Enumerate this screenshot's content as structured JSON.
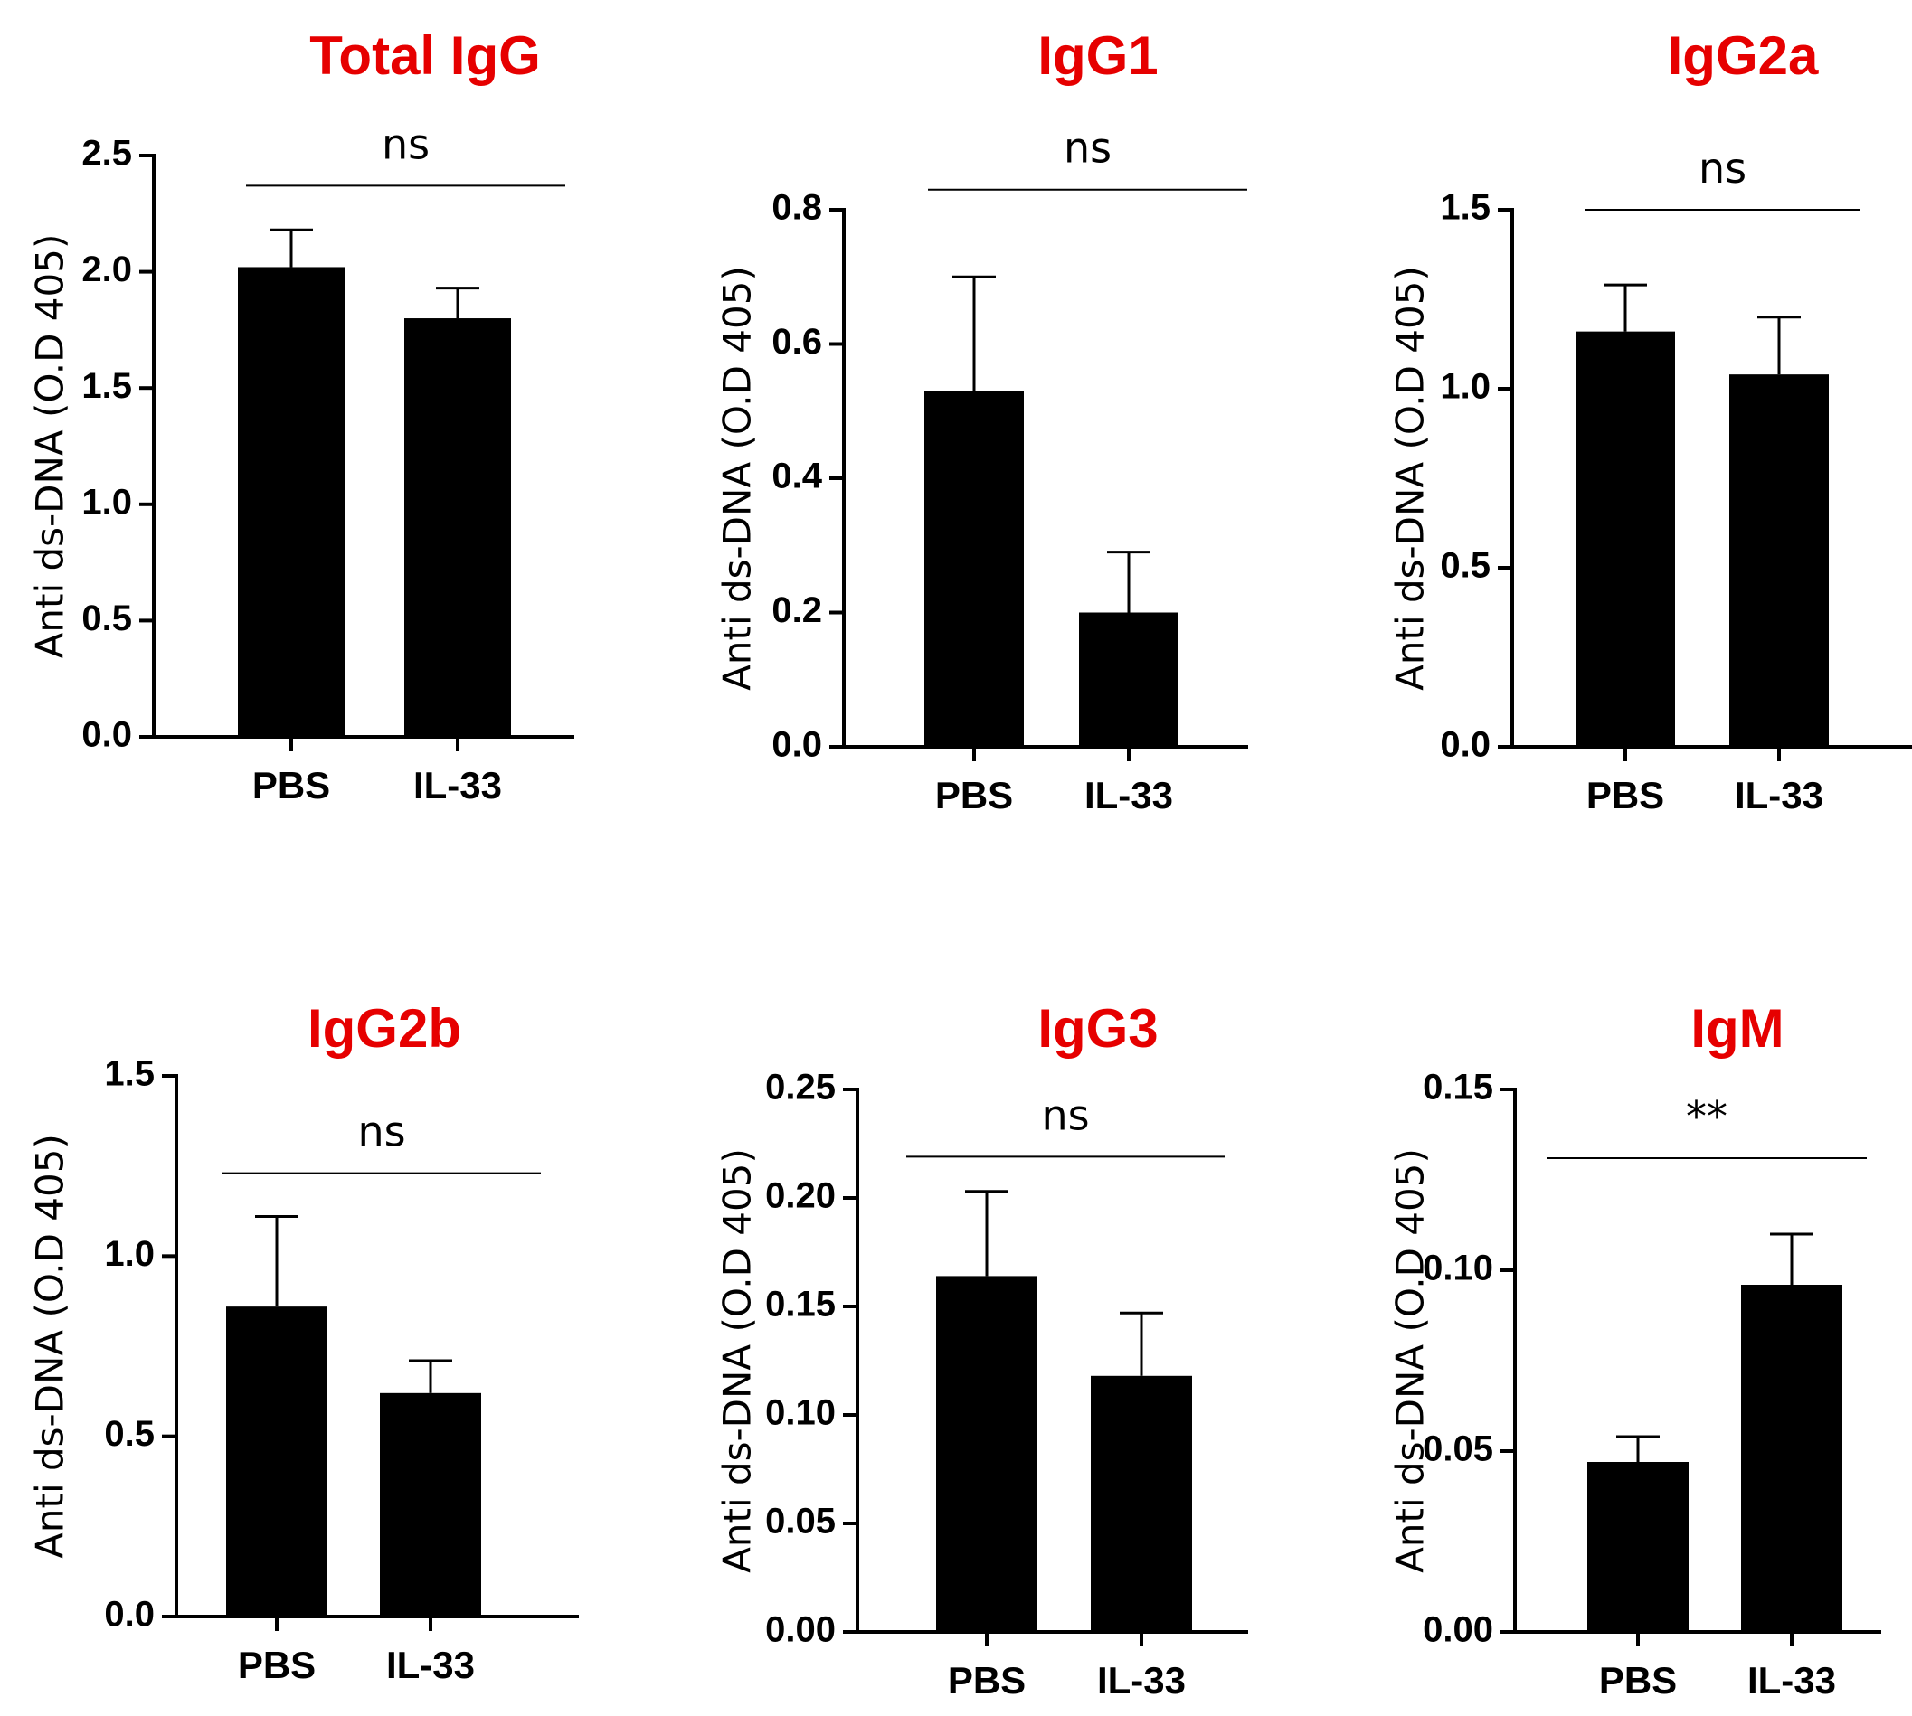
{
  "figure": {
    "title_color": "#e60000",
    "bar_color": "#000000",
    "axis_color": "#000000"
  },
  "chart_data": [
    {
      "type": "bar",
      "title": "Total IgG",
      "ylabel": "Anti ds-DNA (O.D 405)",
      "categories": [
        "PBS",
        "IL-33"
      ],
      "values": [
        2.02,
        1.8
      ],
      "errors": [
        0.16,
        0.13
      ],
      "ylim": [
        0,
        2.5
      ],
      "yticks": [
        0.0,
        0.5,
        1.0,
        1.5,
        2.0,
        2.5
      ],
      "ytick_labels": [
        "0.0",
        "0.5",
        "1.0",
        "1.5",
        "2.0",
        "2.5"
      ],
      "significance": "ns",
      "significance_level": 2.37
    },
    {
      "type": "bar",
      "title": "IgG1",
      "ylabel": "Anti ds-DNA (O.D 405)",
      "categories": [
        "PBS",
        "IL-33"
      ],
      "values": [
        0.53,
        0.2
      ],
      "errors": [
        0.17,
        0.09
      ],
      "ylim": [
        0,
        0.8
      ],
      "yticks": [
        0.0,
        0.2,
        0.4,
        0.6,
        0.8
      ],
      "ytick_labels": [
        "0.0",
        "0.2",
        "0.4",
        "0.6",
        "0.8"
      ],
      "significance": "ns",
      "significance_level": 0.83
    },
    {
      "type": "bar",
      "title": "IgG2a",
      "ylabel": "Anti ds-DNA (O.D 405)",
      "categories": [
        "PBS",
        "IL-33"
      ],
      "values": [
        1.16,
        1.04
      ],
      "errors": [
        0.13,
        0.16
      ],
      "ylim": [
        0,
        1.5
      ],
      "yticks": [
        0.0,
        0.5,
        1.0,
        1.5
      ],
      "ytick_labels": [
        "0.0",
        "0.5",
        "1.0",
        "1.5"
      ],
      "significance": "ns",
      "significance_level": 1.5
    },
    {
      "type": "bar",
      "title": "IgG2b",
      "ylabel": "Anti ds-DNA (O.D 405)",
      "categories": [
        "PBS",
        "IL-33"
      ],
      "values": [
        0.86,
        0.62
      ],
      "errors": [
        0.25,
        0.09
      ],
      "ylim": [
        0,
        1.5
      ],
      "yticks": [
        0.0,
        0.5,
        1.0,
        1.5
      ],
      "ytick_labels": [
        "0.0",
        "0.5",
        "1.0",
        "1.5"
      ],
      "significance": "ns",
      "significance_level": 1.23
    },
    {
      "type": "bar",
      "title": "IgG3",
      "ylabel": "Anti ds-DNA (O.D 405)",
      "categories": [
        "PBS",
        "IL-33"
      ],
      "values": [
        0.164,
        0.118
      ],
      "errors": [
        0.039,
        0.029
      ],
      "ylim": [
        0,
        0.25
      ],
      "yticks": [
        0.0,
        0.05,
        0.1,
        0.15,
        0.2,
        0.25
      ],
      "ytick_labels": [
        "0.00",
        "0.05",
        "0.10",
        "0.15",
        "0.20",
        "0.25"
      ],
      "significance": "ns",
      "significance_level": 0.219
    },
    {
      "type": "bar",
      "title": "IgM",
      "ylabel": "Anti ds-DNA (O.D 405)",
      "categories": [
        "PBS",
        "IL-33"
      ],
      "values": [
        0.047,
        0.096
      ],
      "errors": [
        0.007,
        0.014
      ],
      "ylim": [
        0,
        0.15
      ],
      "yticks": [
        0.0,
        0.05,
        0.1,
        0.15
      ],
      "ytick_labels": [
        "0.00",
        "0.05",
        "0.10",
        "0.15"
      ],
      "significance": "**",
      "significance_level": 0.131
    }
  ]
}
